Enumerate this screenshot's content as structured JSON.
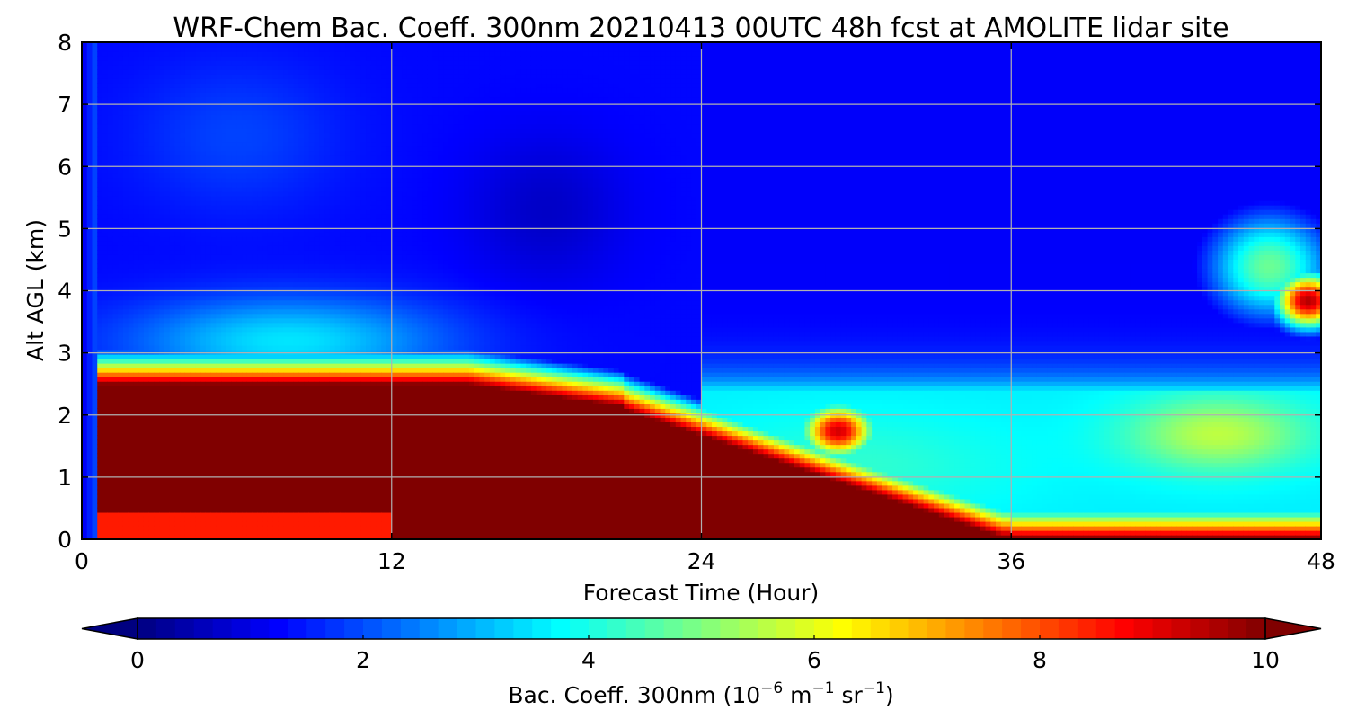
{
  "chart_data": {
    "type": "heatmap",
    "title": "WRF-Chem Bac. Coeff. 300nm  20210413 00UTC 48h fcst at AMOLITE lidar site",
    "xlabel": "Forecast Time (Hour)",
    "ylabel": "Alt AGL (km)",
    "xlim": [
      0,
      48
    ],
    "ylim": [
      0,
      8
    ],
    "x_ticks": [
      0,
      12,
      24,
      36,
      48
    ],
    "y_ticks": [
      0,
      1,
      2,
      3,
      4,
      5,
      6,
      7,
      8
    ],
    "grid": true,
    "colormap": "jet",
    "colorbar": {
      "label_main": "Bac. Coeff. 300nm  (10",
      "label_exp1": "−6",
      "label_mid": " m",
      "label_exp2": "−1",
      "label_mid2": " sr",
      "label_exp3": "−1",
      "label_end": ")",
      "min": 0,
      "max": 10,
      "ticks": [
        0,
        2,
        4,
        6,
        8,
        10
      ],
      "extend": "both",
      "orientation": "horizontal"
    },
    "x": [
      0,
      1,
      2,
      3,
      4,
      5,
      6,
      7,
      8,
      9,
      10,
      11,
      12,
      13,
      14,
      15,
      16,
      17,
      18,
      19,
      20,
      21,
      22,
      23,
      24,
      25,
      26,
      27,
      28,
      29,
      30,
      31,
      32,
      33,
      34,
      35,
      36,
      37,
      38,
      39,
      40,
      41,
      42,
      43,
      44,
      45,
      46,
      47,
      48
    ],
    "y": [
      0,
      0.25,
      0.5,
      0.75,
      1,
      1.25,
      1.5,
      1.75,
      2,
      2.25,
      2.5,
      2.75,
      3,
      3.25,
      3.5,
      3.75,
      4,
      4.25,
      4.5,
      4.75,
      5,
      5.25,
      5.5,
      5.75,
      6,
      6.25,
      6.5,
      6.75,
      7,
      7.25,
      7.5,
      7.75,
      8
    ],
    "values_description": "backscatter coefficient values in 1e-6 m-1 sr-1 approximated from the figure; high (>=10) aerosol layer below ~2.5 km until hour ~15, descending to surface by hour ~36; elevated plume near 1.5-2.5 km at hour ~29 and near 3.5-4.5 km at hour ~47"
  }
}
